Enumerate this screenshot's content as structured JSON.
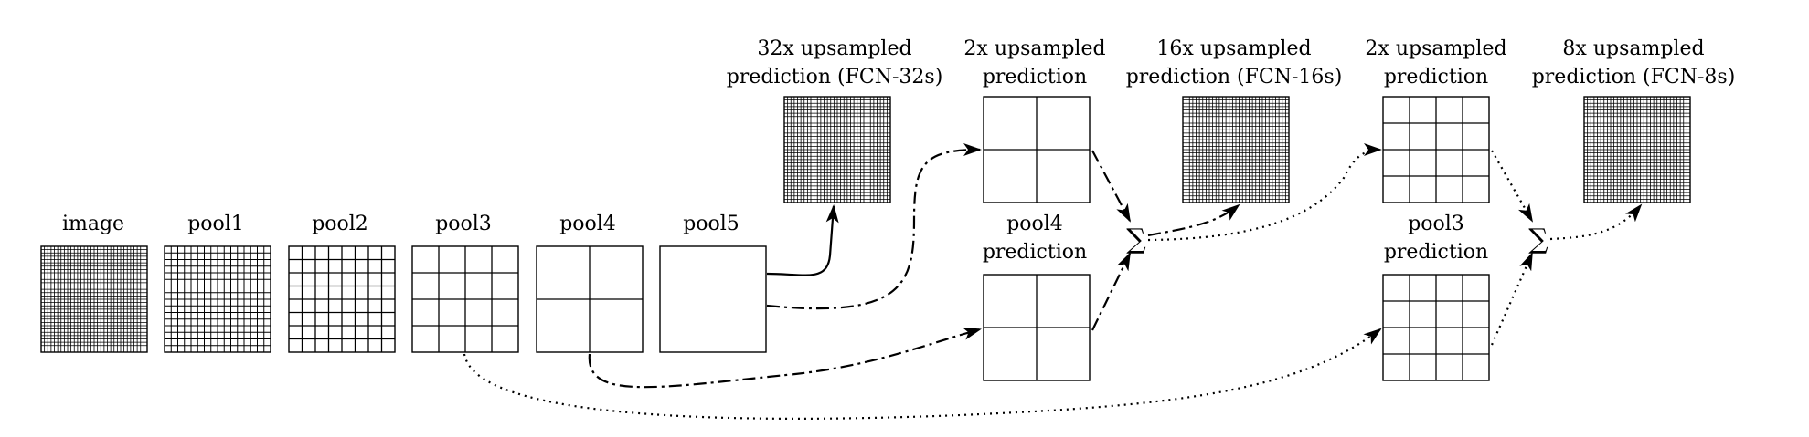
{
  "labels": {
    "image": "image",
    "pool1": "pool1",
    "pool2": "pool2",
    "pool3": "pool3",
    "pool4": "pool4",
    "pool5": "pool5",
    "fcn32_l1": "32x upsampled",
    "fcn32_l2": "prediction (FCN-32s)",
    "up2a_l1": "2x upsampled",
    "up2a_l2": "prediction",
    "fcn16_l1": "16x upsampled",
    "fcn16_l2": "prediction (FCN-16s)",
    "up2b_l1": "2x upsampled",
    "up2b_l2": "prediction",
    "fcn8_l1": "8x upsampled",
    "fcn8_l2": "prediction (FCN-8s)",
    "p4pred_l1": "pool4",
    "p4pred_l2": "prediction",
    "p3pred_l1": "pool3",
    "p3pred_l2": "prediction",
    "sum_symbol": "∑"
  },
  "grids": {
    "image": 32,
    "pool1": 16,
    "pool2": 8,
    "pool3": 4,
    "pool4": 2,
    "pool5": 1,
    "fcn32": 32,
    "up2a": 2,
    "fcn16": 32,
    "up2b": 4,
    "fcn8": 32,
    "p4pred": 2,
    "p3pred": 4
  }
}
